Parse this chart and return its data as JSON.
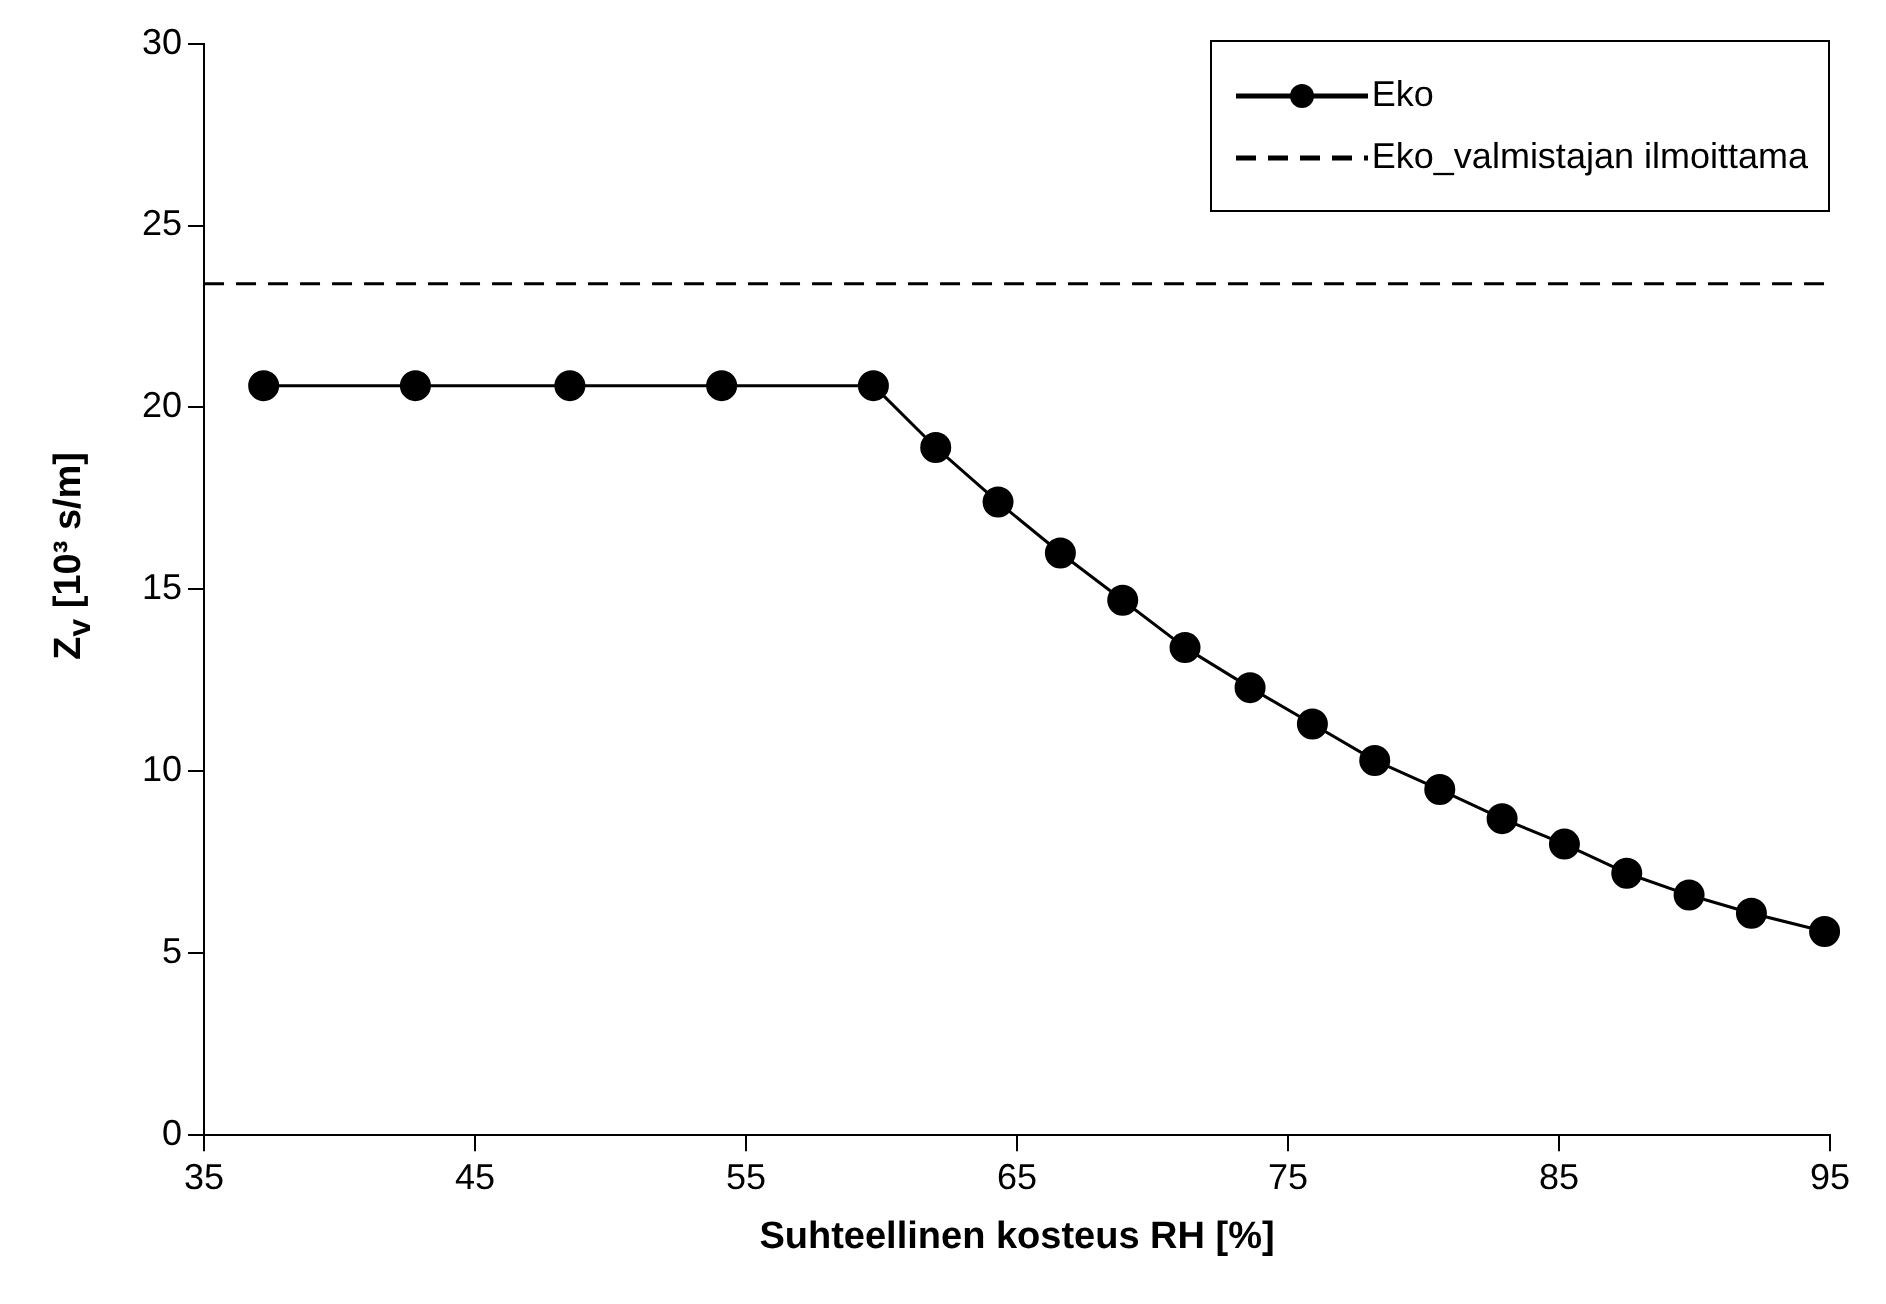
{
  "chart_data": {
    "type": "line",
    "xlabel": "Suhteellinen kosteus RH [%]",
    "ylabel": "Z$_{v}$ [10³ s/m]",
    "xlim": [
      35,
      95
    ],
    "xticks": [
      35,
      45,
      55,
      65,
      75,
      85,
      95
    ],
    "ylim": [
      0,
      30
    ],
    "yticks": [
      0,
      5,
      10,
      15,
      20,
      25,
      30
    ],
    "grid": false,
    "legend": "top right",
    "series": [
      {
        "name": "Eko",
        "color": "#000000",
        "marker": "circle",
        "line_style": "solid",
        "x": [
          37.2,
          42.8,
          48.5,
          54.1,
          59.7,
          62.0,
          64.3,
          66.6,
          68.9,
          71.2,
          73.6,
          75.9,
          78.2,
          80.6,
          82.9,
          85.2,
          87.5,
          89.8,
          92.1,
          94.8
        ],
        "values": [
          20.6,
          20.6,
          20.6,
          20.6,
          20.6,
          18.9,
          17.4,
          16.0,
          14.7,
          13.4,
          12.3,
          11.3,
          10.3,
          9.5,
          8.7,
          8.0,
          7.2,
          6.6,
          6.1,
          5.6
        ]
      },
      {
        "name": "Eko_valmistajan ilmoittama",
        "color": "#000000",
        "marker": "none",
        "line_style": "dashed",
        "x": [
          35,
          95
        ],
        "values": [
          23.4,
          23.4
        ]
      }
    ]
  }
}
